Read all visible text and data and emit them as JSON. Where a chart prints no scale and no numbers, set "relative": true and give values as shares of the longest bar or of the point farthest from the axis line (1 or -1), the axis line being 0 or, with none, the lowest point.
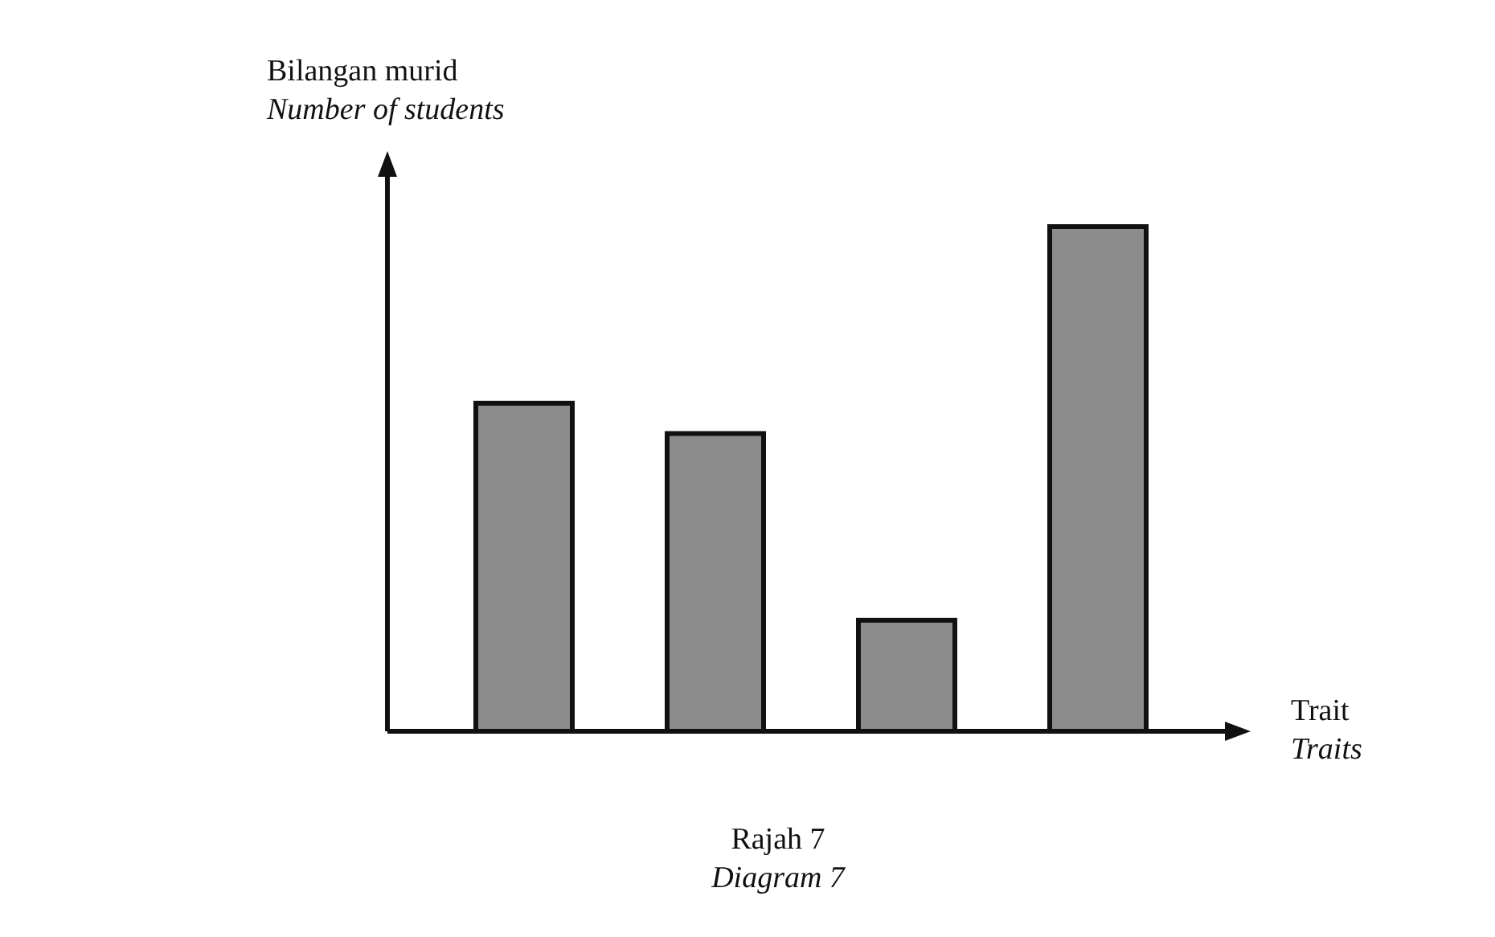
{
  "chart_data": {
    "type": "bar",
    "relative": true,
    "ylabel": "Bilangan murid\nNumber of students",
    "xlabel": "Trait\nTraits",
    "annotations": [
      "Rajah 7\nDiagram 7"
    ],
    "categories": [
      null,
      null,
      null,
      null
    ],
    "values": [
      0.65,
      0.59,
      0.22,
      1
    ],
    "color": "#8c8c8c"
  }
}
